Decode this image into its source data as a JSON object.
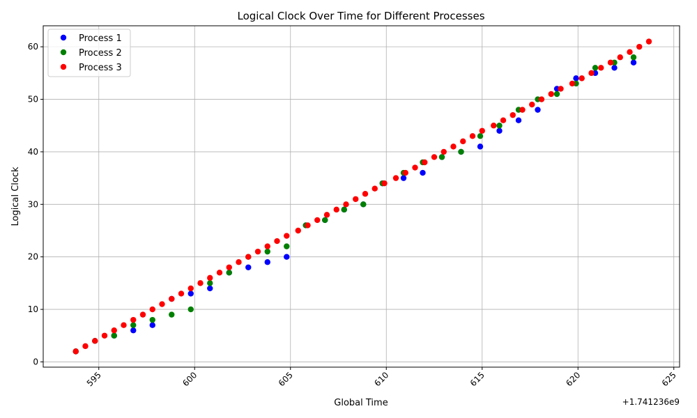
{
  "chart_data": {
    "type": "scatter",
    "title": "Logical Clock Over Time for Different Processes",
    "xlabel": "Global Time",
    "ylabel": "Logical Clock",
    "x_offset_label": "+1.741236e9",
    "xlim": [
      592.1,
      625.3
    ],
    "ylim": [
      -1.0,
      64.0
    ],
    "x_ticks": [
      595,
      600,
      605,
      610,
      615,
      620,
      625
    ],
    "y_ticks": [
      0,
      10,
      20,
      30,
      40,
      50,
      60
    ],
    "grid": true,
    "legend_position": "upper-left",
    "series": [
      {
        "name": "Process 1",
        "color": "#0000ff",
        "x": [
          593.8,
          594.8,
          595.8,
          596.8,
          597.8,
          598.8,
          599.8,
          600.8,
          601.8,
          602.8,
          603.8,
          604.8,
          605.8,
          606.8,
          607.8,
          608.8,
          609.8,
          610.9,
          611.9,
          612.9,
          613.9,
          614.9,
          615.9,
          616.9,
          617.9,
          618.9,
          619.9,
          620.9,
          621.9,
          622.9
        ],
        "y": [
          2,
          4,
          5,
          6,
          7,
          12,
          13,
          14,
          17,
          18,
          19,
          20,
          26,
          27,
          29,
          30,
          34,
          35,
          36,
          39,
          40,
          41,
          44,
          46,
          48,
          52,
          54,
          55,
          56,
          57
        ]
      },
      {
        "name": "Process 2",
        "color": "#008000",
        "x": [
          593.8,
          594.8,
          595.8,
          596.8,
          597.8,
          598.8,
          599.8,
          600.8,
          601.8,
          602.8,
          603.8,
          604.8,
          605.8,
          606.8,
          607.8,
          608.8,
          609.8,
          610.9,
          611.9,
          612.9,
          613.9,
          614.9,
          615.9,
          616.9,
          617.9,
          618.9,
          619.9,
          620.9,
          621.9,
          622.9
        ],
        "y": [
          2,
          4,
          5,
          7,
          8,
          9,
          10,
          15,
          17,
          20,
          21,
          22,
          26,
          27,
          29,
          30,
          34,
          36,
          38,
          39,
          40,
          43,
          45,
          48,
          50,
          51,
          53,
          56,
          57,
          58
        ]
      },
      {
        "name": "Process 3",
        "color": "#ff0000",
        "x": [
          593.8,
          594.3,
          594.8,
          595.3,
          595.8,
          596.3,
          596.8,
          597.3,
          597.8,
          598.3,
          598.8,
          599.3,
          599.8,
          600.3,
          600.8,
          601.3,
          601.8,
          602.3,
          602.8,
          603.3,
          603.8,
          604.3,
          604.8,
          605.4,
          605.9,
          606.4,
          606.9,
          607.4,
          607.9,
          608.4,
          608.9,
          609.4,
          609.9,
          610.5,
          611.0,
          611.5,
          612.0,
          612.5,
          613.0,
          613.5,
          614.0,
          614.5,
          615.0,
          615.6,
          616.1,
          616.6,
          617.1,
          617.6,
          618.1,
          618.6,
          619.1,
          619.7,
          620.2,
          620.7,
          621.2,
          621.7,
          622.2,
          622.7,
          623.2,
          623.7
        ],
        "y": [
          2,
          3,
          4,
          5,
          6,
          7,
          8,
          9,
          10,
          11,
          12,
          13,
          14,
          15,
          16,
          17,
          18,
          19,
          20,
          21,
          22,
          23,
          24,
          25,
          26,
          27,
          28,
          29,
          30,
          31,
          32,
          33,
          34,
          35,
          36,
          37,
          38,
          39,
          40,
          41,
          42,
          43,
          44,
          45,
          46,
          47,
          48,
          49,
          50,
          51,
          52,
          53,
          54,
          55,
          56,
          57,
          58,
          59,
          60,
          61
        ]
      }
    ]
  }
}
